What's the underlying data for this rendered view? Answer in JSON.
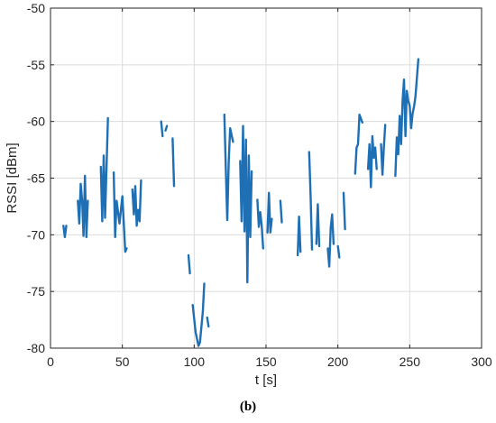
{
  "chart_data": {
    "type": "line",
    "title": "",
    "xlabel": "t [s]",
    "ylabel": "RSSI [dBm]",
    "xlim": [
      0,
      300
    ],
    "ylim": [
      -80,
      -50
    ],
    "xticks": [
      0,
      50,
      100,
      150,
      200,
      250,
      300
    ],
    "yticks": [
      -80,
      -75,
      -70,
      -65,
      -60,
      -55,
      -50
    ],
    "grid": true,
    "line_color": "#1f6fb4",
    "series": [
      {
        "segments": [
          [
            [
              9,
              -69.2
            ],
            [
              10,
              -70.2
            ],
            [
              11,
              -69.2
            ]
          ],
          [
            [
              19,
              -67
            ],
            [
              20,
              -69
            ],
            [
              21,
              -65.5
            ],
            [
              22,
              -67
            ],
            [
              23,
              -70.1
            ],
            [
              24,
              -64.8
            ],
            [
              25,
              -70.2
            ],
            [
              26,
              -67
            ]
          ],
          [
            [
              35,
              -64
            ],
            [
              36,
              -68.8
            ],
            [
              37,
              -63
            ],
            [
              38,
              -68.5
            ],
            [
              40,
              -59.7
            ]
          ],
          [
            [
              44,
              -64.5
            ],
            [
              45,
              -70.2
            ],
            [
              46,
              -67
            ],
            [
              47,
              -68
            ],
            [
              48,
              -69
            ],
            [
              50,
              -66.6
            ],
            [
              52,
              -71.5
            ],
            [
              53,
              -71.2
            ]
          ],
          [
            [
              57,
              -66
            ],
            [
              58,
              -68.2
            ],
            [
              59,
              -65.7
            ],
            [
              60,
              -69.2
            ],
            [
              61,
              -67.8
            ],
            [
              62,
              -68.8
            ],
            [
              63,
              -65.2
            ]
          ],
          [
            [
              77,
              -60
            ],
            [
              78,
              -61.3
            ]
          ],
          [
            [
              80,
              -60.8
            ],
            [
              81,
              -60.4
            ]
          ],
          [
            [
              85,
              -61.5
            ],
            [
              86,
              -65.7
            ]
          ],
          [
            [
              96,
              -71.8
            ],
            [
              97,
              -73.4
            ]
          ],
          [
            [
              99,
              -76.2
            ],
            [
              101,
              -78.6
            ],
            [
              103,
              -79.8
            ],
            [
              104,
              -79.5
            ],
            [
              106,
              -76.8
            ],
            [
              107,
              -74.3
            ]
          ],
          [
            [
              109,
              -77.3
            ],
            [
              110,
              -78.1
            ]
          ],
          [
            [
              121,
              -59.4
            ],
            [
              122,
              -64.2
            ],
            [
              123,
              -68.7
            ],
            [
              124,
              -63.6
            ],
            [
              125,
              -60.6
            ],
            [
              127,
              -61.8
            ]
          ],
          [
            [
              132,
              -63.5
            ],
            [
              133,
              -68.8
            ],
            [
              134,
              -60.4
            ],
            [
              135,
              -69.7
            ],
            [
              136,
              -61.6
            ],
            [
              137,
              -74.2
            ],
            [
              138,
              -63
            ],
            [
              139,
              -70.2
            ],
            [
              140,
              -64.4
            ]
          ],
          [
            [
              144,
              -66.9
            ],
            [
              145,
              -69.3
            ],
            [
              146,
              -68
            ],
            [
              147,
              -69.2
            ],
            [
              148,
              -71.2
            ]
          ],
          [
            [
              151,
              -69.8
            ],
            [
              152,
              -66.3
            ],
            [
              153,
              -69.8
            ],
            [
              154,
              -68.6
            ]
          ],
          [
            [
              160,
              -67
            ],
            [
              161,
              -68.9
            ]
          ],
          [
            [
              172,
              -71.8
            ],
            [
              173,
              -68.4
            ],
            [
              174,
              -71.5
            ]
          ],
          [
            [
              180,
              -62.7
            ],
            [
              181,
              -66.5
            ],
            [
              182,
              -71.3
            ]
          ],
          [
            [
              185,
              -70.8
            ],
            [
              186,
              -67.3
            ],
            [
              187,
              -71
            ]
          ],
          [
            [
              193,
              -71.2
            ],
            [
              194,
              -72.8
            ],
            [
              195,
              -69.4
            ],
            [
              196,
              -68.2
            ],
            [
              197,
              -70.8
            ]
          ],
          [
            [
              200,
              -71
            ],
            [
              201,
              -72
            ]
          ],
          [
            [
              204,
              -66.3
            ],
            [
              205,
              -69.5
            ]
          ],
          [
            [
              212,
              -64.6
            ],
            [
              213,
              -62.3
            ],
            [
              214,
              -62
            ],
            [
              215,
              -59.4
            ],
            [
              217,
              -60.1
            ]
          ],
          [
            [
              221,
              -64.2
            ],
            [
              222,
              -62
            ],
            [
              223,
              -65.8
            ],
            [
              224,
              -61.3
            ],
            [
              225,
              -63.2
            ],
            [
              226,
              -62.3
            ],
            [
              227,
              -64.2
            ]
          ],
          [
            [
              230,
              -62
            ],
            [
              231,
              -64.7
            ],
            [
              232,
              -62.2
            ],
            [
              233,
              -60.3
            ]
          ],
          [
            [
              240,
              -64.8
            ],
            [
              241,
              -61.4
            ],
            [
              242,
              -62.9
            ],
            [
              243,
              -59.5
            ],
            [
              244,
              -62
            ],
            [
              245,
              -58.2
            ],
            [
              246,
              -56.3
            ],
            [
              247,
              -61.3
            ],
            [
              248,
              -57.3
            ],
            [
              249,
              -58.2
            ],
            [
              250,
              -58.6
            ],
            [
              251,
              -60.6
            ],
            [
              252,
              -59.3
            ],
            [
              253,
              -58.7
            ],
            [
              254,
              -57.8
            ],
            [
              256,
              -54.5
            ]
          ]
        ]
      }
    ]
  },
  "caption": {
    "text": "(b)"
  }
}
